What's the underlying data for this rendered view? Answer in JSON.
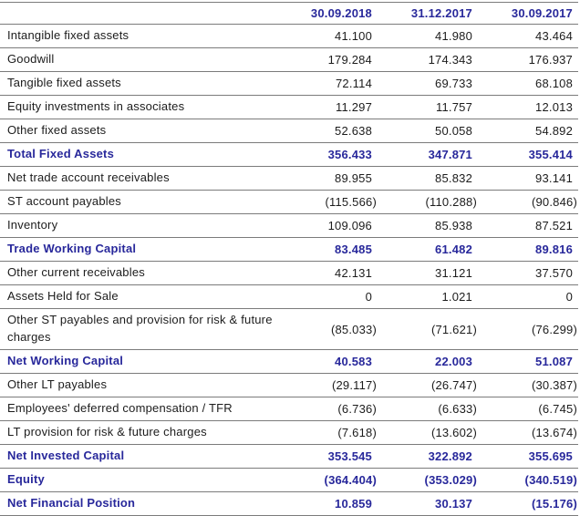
{
  "colors": {
    "accent_navy": "#28289B",
    "body_text": "#1c1c1c",
    "rule_line": "#7b7b7b",
    "background": "#ffffff"
  },
  "table": {
    "columns": [
      "30.09.2018",
      "31.12.2017",
      "30.09.2017"
    ],
    "rows": [
      {
        "label": "Intangible fixed assets",
        "values": [
          "41.100",
          "41.980",
          "43.464"
        ],
        "emphasis": false,
        "tall": false
      },
      {
        "label": "Goodwill",
        "values": [
          "179.284",
          "174.343",
          "176.937"
        ],
        "emphasis": false,
        "tall": false
      },
      {
        "label": "Tangible fixed assets",
        "values": [
          "72.114",
          "69.733",
          "68.108"
        ],
        "emphasis": false,
        "tall": false
      },
      {
        "label": "Equity investments in associates",
        "values": [
          "11.297",
          "11.757",
          "12.013"
        ],
        "emphasis": false,
        "tall": false
      },
      {
        "label": "Other fixed assets",
        "values": [
          "52.638",
          "50.058",
          "54.892"
        ],
        "emphasis": false,
        "tall": false
      },
      {
        "label": "Total Fixed Assets",
        "values": [
          "356.433",
          "347.871",
          "355.414"
        ],
        "emphasis": true,
        "tall": false
      },
      {
        "label": "Net trade account receivables",
        "values": [
          "89.955",
          "85.832",
          "93.141"
        ],
        "emphasis": false,
        "tall": false
      },
      {
        "label": "ST account payables",
        "values": [
          "(115.566)",
          "(110.288)",
          "(90.846)"
        ],
        "emphasis": false,
        "tall": false
      },
      {
        "label": "Inventory",
        "values": [
          "109.096",
          "85.938",
          "87.521"
        ],
        "emphasis": false,
        "tall": false
      },
      {
        "label": "Trade Working Capital",
        "values": [
          "83.485",
          "61.482",
          "89.816"
        ],
        "emphasis": true,
        "tall": false
      },
      {
        "label": "Other current receivables",
        "values": [
          "42.131",
          "31.121",
          "37.570"
        ],
        "emphasis": false,
        "tall": false
      },
      {
        "label": "Assets Held for Sale",
        "values": [
          "0",
          "1.021",
          "0"
        ],
        "emphasis": false,
        "tall": false
      },
      {
        "label": "Other ST payables and provision for risk & future charges",
        "values": [
          "(85.033)",
          "(71.621)",
          "(76.299)"
        ],
        "emphasis": false,
        "tall": true
      },
      {
        "label": "Net Working Capital",
        "values": [
          "40.583",
          "22.003",
          "51.087"
        ],
        "emphasis": true,
        "tall": false
      },
      {
        "label": "Other LT payables",
        "values": [
          "(29.117)",
          "(26.747)",
          "(30.387)"
        ],
        "emphasis": false,
        "tall": false
      },
      {
        "label": "Employees' deferred compensation / TFR",
        "values": [
          "(6.736)",
          "(6.633)",
          "(6.745)"
        ],
        "emphasis": false,
        "tall": false
      },
      {
        "label": "LT provision for risk & future charges",
        "values": [
          "(7.618)",
          "(13.602)",
          "(13.674)"
        ],
        "emphasis": false,
        "tall": false
      },
      {
        "label": "Net Invested Capital",
        "values": [
          "353.545",
          "322.892",
          "355.695"
        ],
        "emphasis": true,
        "tall": false
      },
      {
        "label": "Equity",
        "values": [
          "(364.404)",
          "(353.029)",
          "(340.519)"
        ],
        "emphasis": true,
        "tall": false
      },
      {
        "label": "Net Financial Position",
        "values": [
          "10.859",
          "30.137",
          "(15.176)"
        ],
        "emphasis": true,
        "tall": false
      }
    ]
  }
}
